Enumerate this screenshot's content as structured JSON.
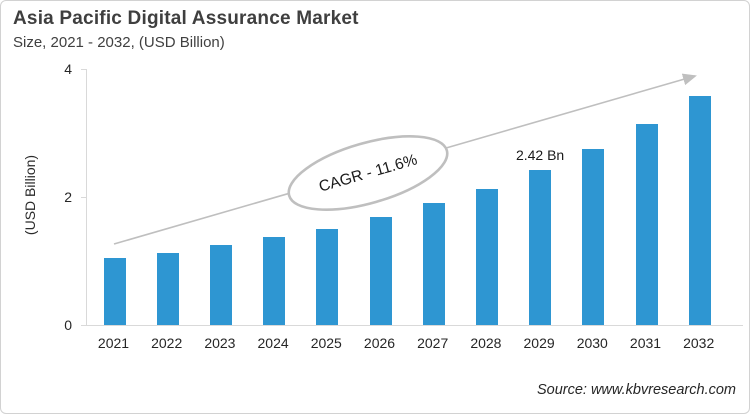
{
  "header": {
    "title": "Asia Pacific Digital Assurance Market",
    "subtitle": "Size, 2021 - 2032, (USD Billion)"
  },
  "chart_data": {
    "type": "bar",
    "title": "Asia Pacific Digital Assurance Market",
    "subtitle": "Size, 2021 - 2032, (USD Billion)",
    "categories": [
      "2021",
      "2022",
      "2023",
      "2024",
      "2025",
      "2026",
      "2027",
      "2028",
      "2029",
      "2030",
      "2031",
      "2032"
    ],
    "values": [
      1.05,
      1.13,
      1.25,
      1.38,
      1.5,
      1.69,
      1.91,
      2.13,
      2.42,
      2.75,
      3.14,
      3.58
    ],
    "xlabel": "",
    "ylabel": "(USD Billion)",
    "ylim": [
      0,
      4
    ],
    "yticks": [
      0,
      2,
      4
    ],
    "grid": false,
    "legend": "none",
    "bar_color": "#2E96D2",
    "annotation_color": "#BFBFBF",
    "annotations": {
      "cagr": "CAGR - 11.6%",
      "data_label": {
        "category": "2029",
        "text": "2.42 Bn"
      },
      "trend_arrow": true
    }
  },
  "footer": {
    "source": "Source: www.kbvresearch.com"
  }
}
